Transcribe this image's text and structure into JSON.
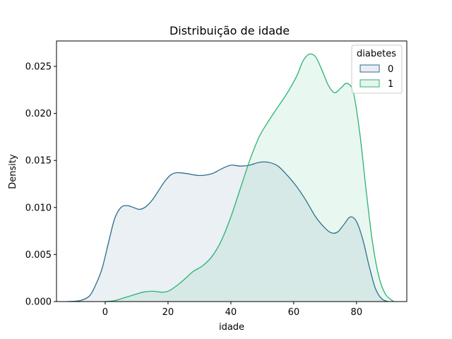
{
  "chart_data": {
    "type": "area",
    "title": "Distribuição de idade",
    "xlabel": "idade",
    "ylabel": "Density",
    "xlim": [
      -15.5,
      96
    ],
    "ylim": [
      0,
      0.0277
    ],
    "xticks": [
      0,
      20,
      40,
      60,
      80
    ],
    "yticks": [
      0.0,
      0.005,
      0.01,
      0.015,
      0.02,
      0.025
    ],
    "ytick_labels": [
      "0.000",
      "0.005",
      "0.010",
      "0.015",
      "0.020",
      "0.025"
    ],
    "grid": false,
    "legend": {
      "title": "diabetes",
      "position": "top-right"
    },
    "series": [
      {
        "name": "0",
        "color": "#2e6b8e",
        "fill": "#e9eef3",
        "points": [
          [
            -12,
            0.0
          ],
          [
            -8,
            0.0001
          ],
          [
            -5,
            0.0006
          ],
          [
            -3,
            0.0018
          ],
          [
            -1,
            0.0035
          ],
          [
            1,
            0.0062
          ],
          [
            3,
            0.0088
          ],
          [
            5,
            0.01
          ],
          [
            7,
            0.0102
          ],
          [
            9,
            0.01
          ],
          [
            11,
            0.0098
          ],
          [
            13,
            0.0101
          ],
          [
            15,
            0.0108
          ],
          [
            17,
            0.0118
          ],
          [
            19,
            0.0128
          ],
          [
            21,
            0.0135
          ],
          [
            23,
            0.0137
          ],
          [
            26,
            0.0136
          ],
          [
            30,
            0.0134
          ],
          [
            34,
            0.0136
          ],
          [
            37,
            0.0141
          ],
          [
            40,
            0.0145
          ],
          [
            43,
            0.0144
          ],
          [
            46,
            0.0145
          ],
          [
            49,
            0.0148
          ],
          [
            52,
            0.0148
          ],
          [
            55,
            0.0144
          ],
          [
            58,
            0.0134
          ],
          [
            61,
            0.0122
          ],
          [
            64,
            0.0107
          ],
          [
            67,
            0.009
          ],
          [
            70,
            0.0078
          ],
          [
            72,
            0.0073
          ],
          [
            74,
            0.0074
          ],
          [
            76,
            0.0082
          ],
          [
            78,
            0.009
          ],
          [
            80,
            0.0085
          ],
          [
            82,
            0.0066
          ],
          [
            84,
            0.0038
          ],
          [
            86,
            0.0014
          ],
          [
            88,
            0.0003
          ],
          [
            90,
            0.0
          ]
        ]
      },
      {
        "name": "1",
        "color": "#2ab373",
        "fill": "#e6f5ee",
        "points": [
          [
            0,
            0.0
          ],
          [
            3,
            0.0001
          ],
          [
            6,
            0.0004
          ],
          [
            9,
            0.0007
          ],
          [
            12,
            0.001
          ],
          [
            15,
            0.0011
          ],
          [
            18,
            0.001
          ],
          [
            20,
            0.0011
          ],
          [
            22,
            0.0015
          ],
          [
            25,
            0.0023
          ],
          [
            28,
            0.0032
          ],
          [
            31,
            0.0038
          ],
          [
            34,
            0.0048
          ],
          [
            37,
            0.0065
          ],
          [
            40,
            0.009
          ],
          [
            43,
            0.012
          ],
          [
            46,
            0.015
          ],
          [
            49,
            0.0175
          ],
          [
            52,
            0.0192
          ],
          [
            55,
            0.0207
          ],
          [
            58,
            0.0222
          ],
          [
            61,
            0.024
          ],
          [
            63,
            0.0256
          ],
          [
            65,
            0.0263
          ],
          [
            67,
            0.026
          ],
          [
            69,
            0.0246
          ],
          [
            71,
            0.023
          ],
          [
            73,
            0.0222
          ],
          [
            75,
            0.0227
          ],
          [
            77,
            0.0232
          ],
          [
            79,
            0.0222
          ],
          [
            81,
            0.018
          ],
          [
            83,
            0.012
          ],
          [
            85,
            0.0065
          ],
          [
            87,
            0.0028
          ],
          [
            89,
            0.0009
          ],
          [
            91,
            0.0002
          ],
          [
            92,
            0.0
          ]
        ]
      }
    ]
  }
}
